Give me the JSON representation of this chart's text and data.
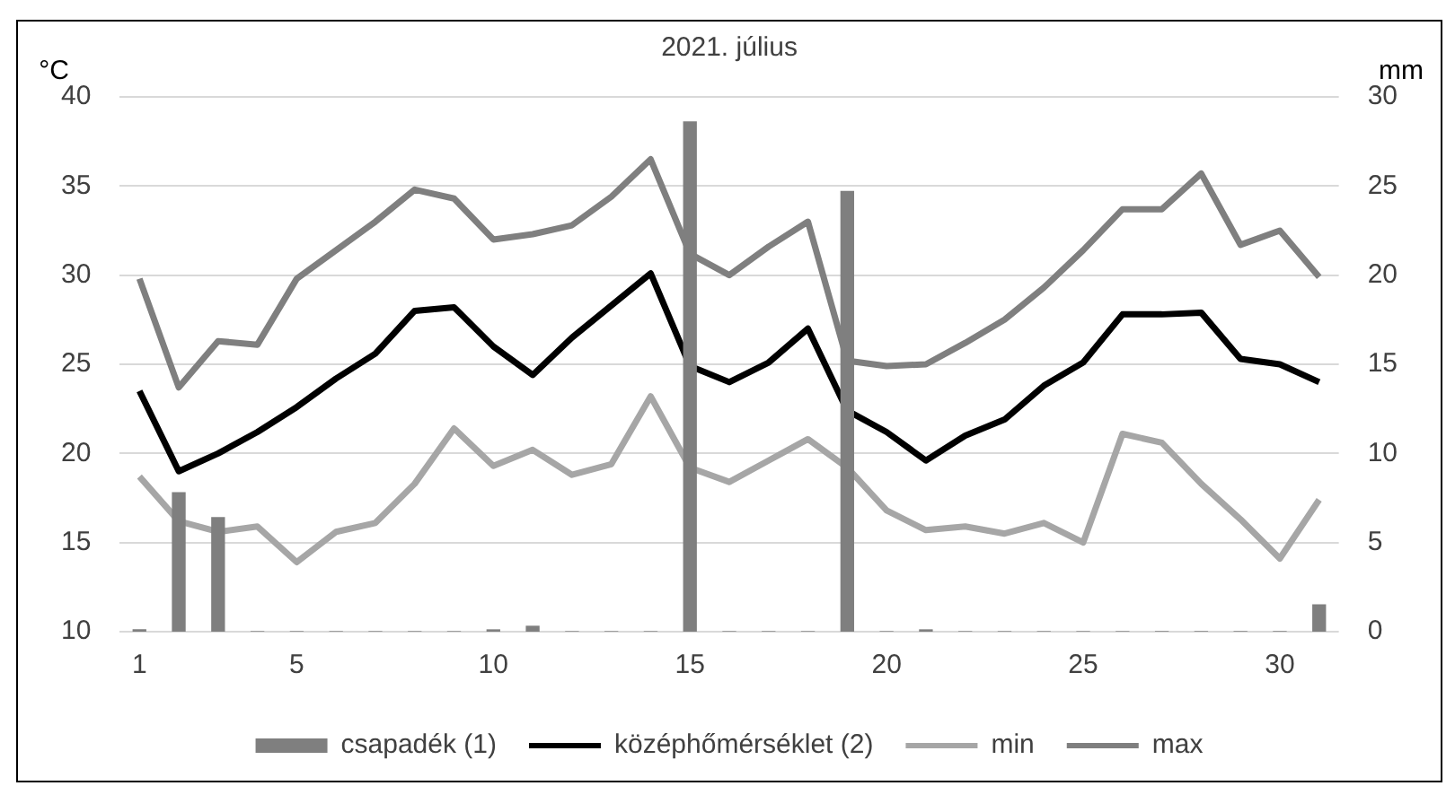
{
  "chart_data": {
    "type": "line",
    "title": "2021. július",
    "ylabel": "°C",
    "y2label": "mm",
    "x": [
      1,
      2,
      3,
      4,
      5,
      6,
      7,
      8,
      9,
      10,
      11,
      12,
      13,
      14,
      15,
      16,
      17,
      18,
      19,
      20,
      21,
      22,
      23,
      24,
      25,
      26,
      27,
      28,
      29,
      30,
      31
    ],
    "xlim": [
      0.5,
      31.5
    ],
    "xticks": [
      1,
      5,
      10,
      15,
      20,
      25,
      30
    ],
    "series": [
      {
        "name": "csapadék (1)",
        "type": "bar",
        "axis": "y2",
        "color": "#7f7f7f",
        "values": [
          0.1,
          7.8,
          6.4,
          0,
          0,
          0,
          0,
          0,
          0,
          0.1,
          0.3,
          0,
          0,
          0,
          28.6,
          0,
          0,
          0,
          24.7,
          0,
          0.1,
          0,
          0,
          0,
          0,
          0,
          0,
          0,
          0,
          0,
          1.5
        ]
      },
      {
        "name": "középhőmérséklet (2)",
        "color": "#000000",
        "values": [
          23.5,
          19.0,
          20.0,
          21.2,
          22.6,
          24.2,
          25.6,
          28.0,
          28.2,
          26.0,
          24.4,
          26.5,
          28.3,
          30.1,
          24.9,
          24.0,
          25.1,
          27.0,
          22.4,
          21.2,
          19.6,
          21.0,
          21.9,
          23.8,
          25.1,
          27.8,
          27.8,
          27.9,
          25.3,
          25.0,
          24.0
        ]
      },
      {
        "name": "min",
        "color": "#a6a6a6",
        "values": [
          18.7,
          16.2,
          15.6,
          15.9,
          13.9,
          15.6,
          16.1,
          18.3,
          21.4,
          19.3,
          20.2,
          18.8,
          19.4,
          23.2,
          19.2,
          18.4,
          19.6,
          20.8,
          19.2,
          16.8,
          15.7,
          15.9,
          15.5,
          16.1,
          15.0,
          21.1,
          20.6,
          18.3,
          16.3,
          14.1,
          17.4
        ]
      },
      {
        "name": "max",
        "color": "#7f7f7f",
        "values": [
          29.8,
          23.7,
          26.3,
          26.1,
          29.8,
          31.4,
          33.0,
          34.8,
          34.3,
          32.0,
          32.3,
          32.8,
          34.4,
          36.5,
          31.2,
          30.0,
          31.6,
          33.0,
          25.2,
          24.9,
          25.0,
          26.2,
          27.5,
          29.3,
          31.4,
          33.7,
          33.7,
          35.7,
          31.7,
          32.5,
          29.9
        ]
      }
    ],
    "ylim": [
      10,
      40
    ],
    "yticks": [
      10,
      15,
      20,
      25,
      30,
      35,
      40
    ],
    "y2lim": [
      0,
      30
    ],
    "y2ticks": [
      0,
      5,
      10,
      15,
      20,
      25,
      30
    ],
    "grid": "y",
    "legend": "bottom",
    "marker": "none",
    "line_style": "solid"
  }
}
